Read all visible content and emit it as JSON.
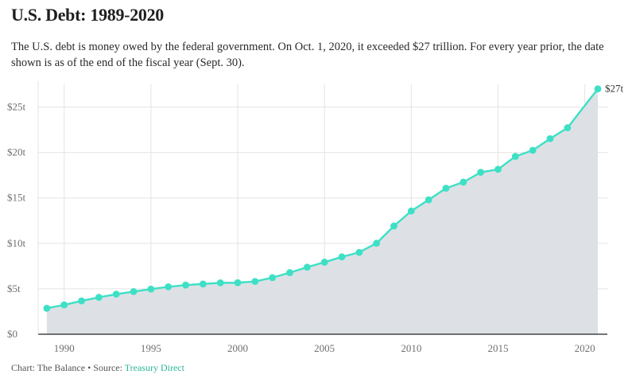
{
  "header": {
    "title": "U.S. Debt: 1989-2020",
    "subtitle": "The U.S. debt is money owed by the federal government. On Oct. 1, 2020, it exceeded $27 trillion. For every year prior, the date shown is as of the end of the fiscal year (Sept. 30)."
  },
  "footer": {
    "credit": "Chart: The Balance • Source: ",
    "source_link": "Treasury Direct"
  },
  "colors": {
    "line": "#3ee0c5",
    "area": "#dde1e6",
    "grid": "#e4e4e4",
    "axis": "#222222"
  },
  "chart_data": {
    "type": "area",
    "title": "U.S. Debt: 1989-2020",
    "xlabel": "",
    "ylabel": "",
    "x": [
      1989,
      1990,
      1991,
      1992,
      1993,
      1994,
      1995,
      1996,
      1997,
      1998,
      1999,
      2000,
      2001,
      2002,
      2003,
      2004,
      2005,
      2006,
      2007,
      2008,
      2009,
      2010,
      2011,
      2012,
      2013,
      2014,
      2015,
      2016,
      2017,
      2018,
      2019,
      2020.75
    ],
    "values": [
      2.86,
      3.23,
      3.67,
      4.06,
      4.41,
      4.69,
      4.97,
      5.22,
      5.41,
      5.53,
      5.66,
      5.67,
      5.81,
      6.23,
      6.78,
      7.38,
      7.93,
      8.51,
      9.01,
      10.02,
      11.91,
      13.56,
      14.79,
      16.07,
      16.74,
      17.82,
      18.15,
      19.57,
      20.24,
      21.52,
      22.72,
      27.0
    ],
    "xlim": [
      1988.5,
      2021.3
    ],
    "ylim": [
      0,
      27.5
    ],
    "x_ticks": [
      1990,
      1995,
      2000,
      2005,
      2010,
      2015,
      2020
    ],
    "x_tick_labels": [
      "1990",
      "1995",
      "2000",
      "2005",
      "2010",
      "2015",
      "2020"
    ],
    "y_ticks": [
      0,
      5,
      10,
      15,
      20,
      25
    ],
    "y_tick_labels": [
      "$0",
      "$5t",
      "$10t",
      "$15t",
      "$20t",
      "$25t"
    ],
    "end_label": "$27t",
    "grid": true,
    "legend": "none"
  }
}
